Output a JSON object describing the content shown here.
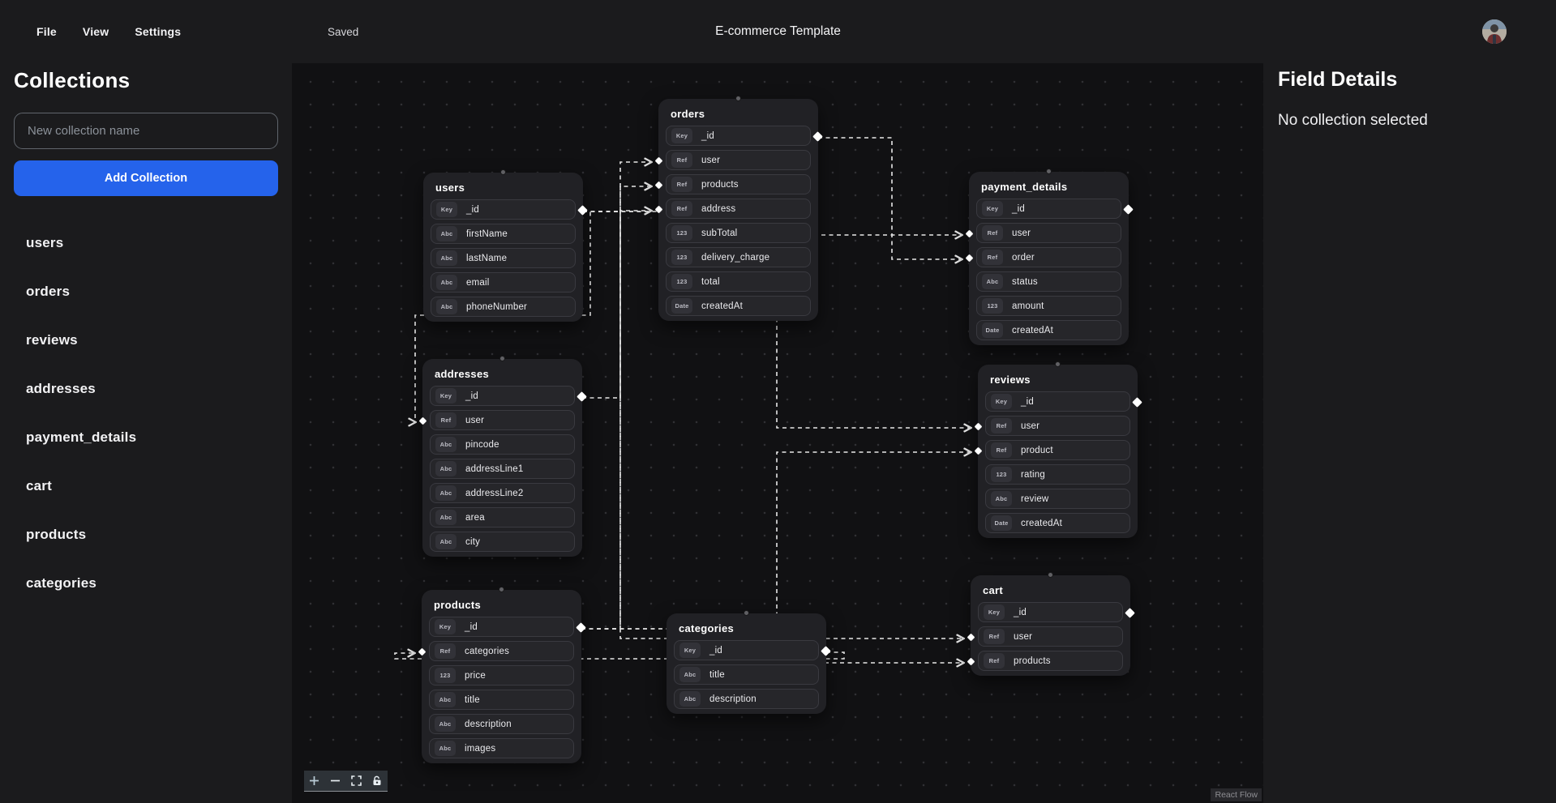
{
  "topbar": {
    "menus": [
      {
        "label": "File"
      },
      {
        "label": "View"
      },
      {
        "label": "Settings"
      }
    ],
    "saved_status": "Saved",
    "title": "E-commerce Template"
  },
  "sidebar": {
    "heading": "Collections",
    "input_placeholder": "New collection name",
    "add_button_label": "Add Collection",
    "collections": [
      "users",
      "orders",
      "reviews",
      "addresses",
      "payment_details",
      "cart",
      "products",
      "categories"
    ]
  },
  "field_panel": {
    "heading": "Field Details",
    "empty_message": "No collection selected"
  },
  "canvas": {
    "nodes": [
      {
        "name": "users",
        "fields": [
          {
            "type": "Key",
            "label": "_id"
          },
          {
            "type": "Abc",
            "label": "firstName"
          },
          {
            "type": "Abc",
            "label": "lastName"
          },
          {
            "type": "Abc",
            "label": "email"
          },
          {
            "type": "Abc",
            "label": "phoneNumber"
          }
        ]
      },
      {
        "name": "orders",
        "fields": [
          {
            "type": "Key",
            "label": "_id"
          },
          {
            "type": "Ref",
            "label": "user"
          },
          {
            "type": "Ref",
            "label": "products"
          },
          {
            "type": "Ref",
            "label": "address"
          },
          {
            "type": "123",
            "label": "subTotal"
          },
          {
            "type": "123",
            "label": "delivery_charge"
          },
          {
            "type": "123",
            "label": "total"
          },
          {
            "type": "Date",
            "label": "createdAt"
          }
        ]
      },
      {
        "name": "payment_details",
        "fields": [
          {
            "type": "Key",
            "label": "_id"
          },
          {
            "type": "Ref",
            "label": "user"
          },
          {
            "type": "Ref",
            "label": "order"
          },
          {
            "type": "Abc",
            "label": "status"
          },
          {
            "type": "123",
            "label": "amount"
          },
          {
            "type": "Date",
            "label": "createdAt"
          }
        ]
      },
      {
        "name": "addresses",
        "fields": [
          {
            "type": "Key",
            "label": "_id"
          },
          {
            "type": "Ref",
            "label": "user"
          },
          {
            "type": "Abc",
            "label": "pincode"
          },
          {
            "type": "Abc",
            "label": "addressLine1"
          },
          {
            "type": "Abc",
            "label": "addressLine2"
          },
          {
            "type": "Abc",
            "label": "area"
          },
          {
            "type": "Abc",
            "label": "city"
          }
        ]
      },
      {
        "name": "reviews",
        "fields": [
          {
            "type": "Key",
            "label": "_id"
          },
          {
            "type": "Ref",
            "label": "user"
          },
          {
            "type": "Ref",
            "label": "product"
          },
          {
            "type": "123",
            "label": "rating"
          },
          {
            "type": "Abc",
            "label": "review"
          },
          {
            "type": "Date",
            "label": "createdAt"
          }
        ]
      },
      {
        "name": "products",
        "fields": [
          {
            "type": "Key",
            "label": "_id"
          },
          {
            "type": "Ref",
            "label": "categories"
          },
          {
            "type": "123",
            "label": "price"
          },
          {
            "type": "Abc",
            "label": "title"
          },
          {
            "type": "Abc",
            "label": "description"
          },
          {
            "type": "Abc",
            "label": "images"
          }
        ]
      },
      {
        "name": "categories",
        "fields": [
          {
            "type": "Key",
            "label": "_id"
          },
          {
            "type": "Abc",
            "label": "title"
          },
          {
            "type": "Abc",
            "label": "description"
          }
        ]
      },
      {
        "name": "cart",
        "fields": [
          {
            "type": "Key",
            "label": "_id"
          },
          {
            "type": "Ref",
            "label": "user"
          },
          {
            "type": "Ref",
            "label": "products"
          }
        ]
      }
    ],
    "edges": [
      {
        "from": "users._id",
        "to": "orders.user"
      },
      {
        "from": "users._id",
        "to": "addresses.user"
      },
      {
        "from": "users._id",
        "to": "payment_details.user"
      },
      {
        "from": "users._id",
        "to": "reviews.user"
      },
      {
        "from": "users._id",
        "to": "cart.user"
      },
      {
        "from": "addresses._id",
        "to": "orders.address"
      },
      {
        "from": "products._id",
        "to": "orders.products"
      },
      {
        "from": "products._id",
        "to": "reviews.product"
      },
      {
        "from": "products._id",
        "to": "cart.products"
      },
      {
        "from": "categories._id",
        "to": "products.categories"
      },
      {
        "from": "orders._id",
        "to": "payment_details.order"
      }
    ],
    "controls": [
      {
        "name": "zoom-in"
      },
      {
        "name": "zoom-out"
      },
      {
        "name": "fit-view"
      },
      {
        "name": "lock"
      }
    ],
    "attribution": "React Flow"
  },
  "colors": {
    "accent_blue": "#2563eb",
    "panel_bg": "#1b1b1d",
    "canvas_bg": "#111113",
    "node_bg": "#212125",
    "edge": "#e8e8e8"
  }
}
